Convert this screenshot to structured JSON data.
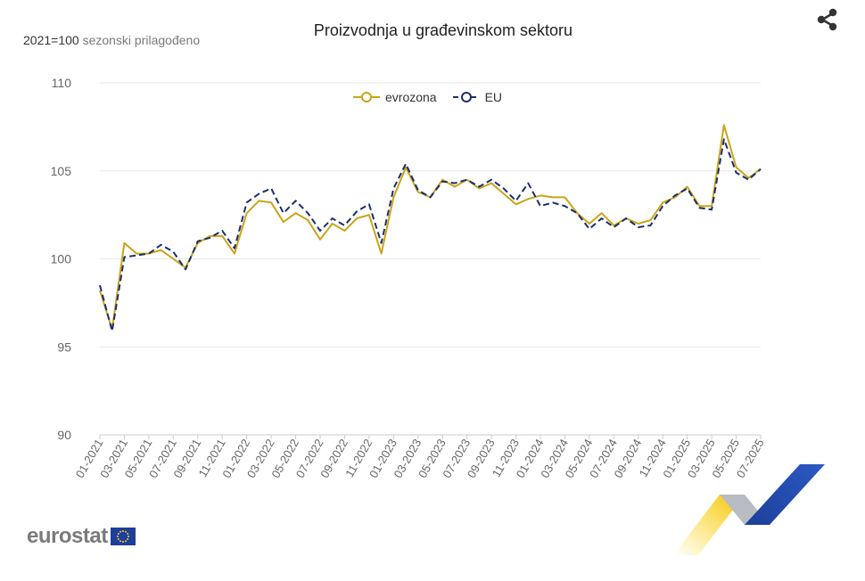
{
  "title": "Proizvodnja u građevinskom sektoru",
  "subtitle_base": "2021=100",
  "subtitle_note": "sezonski prilagođeno",
  "logo_text": "eurostat",
  "icons": {
    "share": "share-icon",
    "eu_flag": "eu-flag-icon"
  },
  "colors": {
    "eurozone": "#c9a516",
    "eu": "#1b2f6e",
    "grid": "#e6e6e6",
    "axis_text": "#666666"
  },
  "chart_data": {
    "type": "line",
    "ylim": [
      90,
      110
    ],
    "yticks": [
      90,
      95,
      100,
      105,
      110
    ],
    "x": [
      "01-2021",
      "02-2021",
      "03-2021",
      "04-2021",
      "05-2021",
      "06-2021",
      "07-2021",
      "08-2021",
      "09-2021",
      "10-2021",
      "11-2021",
      "12-2021",
      "01-2022",
      "02-2022",
      "03-2022",
      "04-2022",
      "05-2022",
      "06-2022",
      "07-2022",
      "08-2022",
      "09-2022",
      "10-2022",
      "11-2022",
      "12-2022",
      "01-2023",
      "02-2023",
      "03-2023",
      "04-2023",
      "05-2023",
      "06-2023",
      "07-2023",
      "08-2023",
      "09-2023",
      "10-2023",
      "11-2023",
      "12-2023",
      "01-2024",
      "02-2024",
      "03-2024",
      "04-2024",
      "05-2024",
      "06-2024",
      "07-2024",
      "08-2024",
      "09-2024",
      "10-2024",
      "11-2024",
      "12-2024",
      "01-2025",
      "02-2025",
      "03-2025",
      "04-2025",
      "05-2025",
      "06-2025",
      "07-2025"
    ],
    "xtick_labels": [
      "01-2021",
      "03-2021",
      "05-2021",
      "07-2021",
      "09-2021",
      "11-2021",
      "01-2022",
      "03-2022",
      "05-2022",
      "07-2022",
      "09-2022",
      "11-2022",
      "01-2023",
      "03-2023",
      "05-2023",
      "07-2023",
      "09-2023",
      "11-2023",
      "01-2024",
      "03-2024",
      "05-2024",
      "07-2024",
      "09-2024",
      "11-2024",
      "01-2025",
      "03-2025",
      "05-2025",
      "07-2025"
    ],
    "legend_position": "top-center",
    "grid": true,
    "series": [
      {
        "name": "evrozona",
        "style": "solid",
        "values": [
          98.2,
          96.0,
          100.9,
          100.3,
          100.3,
          100.5,
          100.0,
          99.5,
          100.9,
          101.3,
          101.3,
          100.3,
          102.6,
          103.3,
          103.2,
          102.1,
          102.6,
          102.2,
          101.1,
          102.0,
          101.6,
          102.3,
          102.5,
          100.3,
          103.5,
          105.2,
          103.8,
          103.5,
          104.5,
          104.1,
          104.5,
          104.0,
          104.3,
          103.7,
          103.1,
          103.4,
          103.6,
          103.5,
          103.5,
          102.6,
          102.0,
          102.6,
          101.9,
          102.3,
          102.0,
          102.2,
          103.2,
          103.5,
          104.1,
          103.0,
          103.0,
          107.6,
          105.2,
          104.6,
          105.1
        ]
      },
      {
        "name": "EU",
        "style": "dashed",
        "values": [
          98.5,
          95.9,
          100.1,
          100.2,
          100.3,
          100.8,
          100.4,
          99.4,
          101.0,
          101.2,
          101.6,
          100.6,
          103.2,
          103.7,
          104.0,
          102.6,
          103.3,
          102.6,
          101.6,
          102.3,
          101.9,
          102.7,
          103.1,
          100.9,
          104.0,
          105.4,
          103.9,
          103.5,
          104.4,
          104.3,
          104.5,
          104.1,
          104.5,
          104.0,
          103.3,
          104.3,
          103.0,
          103.2,
          103.0,
          102.6,
          101.7,
          102.3,
          101.8,
          102.3,
          101.8,
          101.9,
          103.0,
          103.6,
          104.0,
          102.9,
          102.8,
          106.8,
          104.9,
          104.5,
          105.1
        ]
      }
    ]
  }
}
